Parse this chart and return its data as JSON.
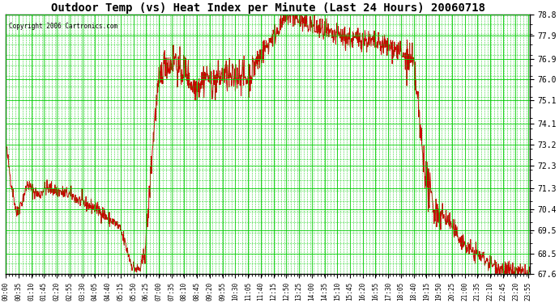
{
  "title": "Outdoor Temp (vs) Heat Index per Minute (Last 24 Hours) 20060718",
  "copyright": "Copyright 2006 Cartronics.com",
  "background_color": "#ffffff",
  "plot_bg_color": "#ffffff",
  "line_color": "#cc0000",
  "grid_color": "#00cc00",
  "yticks": [
    67.6,
    68.5,
    69.5,
    70.4,
    71.3,
    72.3,
    73.2,
    74.1,
    75.1,
    76.0,
    76.9,
    77.9,
    78.8
  ],
  "ylim": [
    67.6,
    78.8
  ],
  "xtick_labels": [
    "00:00",
    "00:35",
    "01:10",
    "01:45",
    "02:20",
    "02:55",
    "03:30",
    "04:05",
    "04:40",
    "05:15",
    "05:50",
    "06:25",
    "07:00",
    "07:35",
    "08:10",
    "08:45",
    "09:20",
    "09:55",
    "10:30",
    "11:05",
    "11:40",
    "12:15",
    "12:50",
    "13:25",
    "14:00",
    "14:35",
    "15:10",
    "15:45",
    "16:20",
    "16:55",
    "17:30",
    "18:05",
    "18:40",
    "19:15",
    "19:50",
    "20:25",
    "21:00",
    "21:35",
    "22:10",
    "22:45",
    "23:20",
    "23:55"
  ],
  "xtick_minutes": [
    0,
    35,
    70,
    105,
    140,
    175,
    210,
    245,
    280,
    315,
    350,
    385,
    420,
    455,
    490,
    525,
    560,
    595,
    630,
    665,
    700,
    735,
    770,
    805,
    840,
    875,
    910,
    945,
    980,
    1015,
    1050,
    1085,
    1120,
    1155,
    1190,
    1225,
    1260,
    1295,
    1330,
    1365,
    1400,
    1435
  ],
  "temp_keypoints": [
    [
      0,
      73.2
    ],
    [
      15,
      71.5
    ],
    [
      30,
      70.2
    ],
    [
      45,
      70.8
    ],
    [
      60,
      71.5
    ],
    [
      75,
      71.2
    ],
    [
      90,
      71.0
    ],
    [
      105,
      71.3
    ],
    [
      120,
      71.3
    ],
    [
      140,
      71.2
    ],
    [
      160,
      71.1
    ],
    [
      180,
      71.0
    ],
    [
      200,
      70.8
    ],
    [
      220,
      70.6
    ],
    [
      240,
      70.5
    ],
    [
      260,
      70.3
    ],
    [
      270,
      70.2
    ],
    [
      280,
      70.0
    ],
    [
      300,
      69.8
    ],
    [
      315,
      69.5
    ],
    [
      330,
      68.8
    ],
    [
      345,
      68.0
    ],
    [
      360,
      67.8
    ],
    [
      370,
      67.85
    ],
    [
      380,
      68.5
    ],
    [
      390,
      70.0
    ],
    [
      400,
      72.5
    ],
    [
      410,
      74.5
    ],
    [
      420,
      75.8
    ],
    [
      430,
      76.5
    ],
    [
      440,
      76.8
    ],
    [
      450,
      76.6
    ],
    [
      460,
      76.8
    ],
    [
      465,
      77.0
    ],
    [
      470,
      76.5
    ],
    [
      480,
      76.3
    ],
    [
      490,
      76.5
    ],
    [
      500,
      76.2
    ],
    [
      510,
      75.8
    ],
    [
      520,
      75.7
    ],
    [
      530,
      75.8
    ],
    [
      540,
      76.0
    ],
    [
      550,
      76.2
    ],
    [
      560,
      76.0
    ],
    [
      570,
      75.8
    ],
    [
      580,
      76.0
    ],
    [
      590,
      76.1
    ],
    [
      600,
      76.2
    ],
    [
      610,
      76.1
    ],
    [
      620,
      76.0
    ],
    [
      630,
      76.1
    ],
    [
      640,
      76.3
    ],
    [
      650,
      76.2
    ],
    [
      660,
      76.0
    ],
    [
      670,
      76.2
    ],
    [
      680,
      76.5
    ],
    [
      690,
      76.8
    ],
    [
      700,
      77.0
    ],
    [
      710,
      77.3
    ],
    [
      720,
      77.5
    ],
    [
      730,
      77.8
    ],
    [
      740,
      78.0
    ],
    [
      750,
      78.3
    ],
    [
      760,
      78.5
    ],
    [
      770,
      78.7
    ],
    [
      780,
      78.8
    ],
    [
      790,
      78.7
    ],
    [
      800,
      78.6
    ],
    [
      810,
      78.5
    ],
    [
      820,
      78.4
    ],
    [
      830,
      78.4
    ],
    [
      840,
      78.3
    ],
    [
      850,
      78.2
    ],
    [
      860,
      78.2
    ],
    [
      870,
      78.1
    ],
    [
      880,
      78.0
    ],
    [
      890,
      77.9
    ],
    [
      900,
      77.8
    ],
    [
      910,
      77.9
    ],
    [
      920,
      77.9
    ],
    [
      930,
      77.8
    ],
    [
      940,
      77.8
    ],
    [
      950,
      77.7
    ],
    [
      960,
      77.7
    ],
    [
      970,
      77.8
    ],
    [
      980,
      77.8
    ],
    [
      990,
      77.7
    ],
    [
      1000,
      77.6
    ],
    [
      1010,
      77.6
    ],
    [
      1020,
      77.5
    ],
    [
      1030,
      77.5
    ],
    [
      1040,
      77.5
    ],
    [
      1050,
      77.4
    ],
    [
      1060,
      77.4
    ],
    [
      1070,
      77.3
    ],
    [
      1080,
      77.2
    ],
    [
      1090,
      77.0
    ],
    [
      1100,
      76.9
    ],
    [
      1110,
      76.8
    ],
    [
      1120,
      76.5
    ],
    [
      1125,
      76.0
    ],
    [
      1130,
      75.2
    ],
    [
      1135,
      74.3
    ],
    [
      1140,
      73.5
    ],
    [
      1145,
      72.8
    ],
    [
      1150,
      72.3
    ],
    [
      1155,
      71.7
    ],
    [
      1160,
      71.3
    ],
    [
      1165,
      71.0
    ],
    [
      1170,
      70.8
    ],
    [
      1175,
      70.5
    ],
    [
      1180,
      70.3
    ],
    [
      1190,
      70.2
    ],
    [
      1200,
      70.1
    ],
    [
      1210,
      70.0
    ],
    [
      1220,
      69.8
    ],
    [
      1230,
      69.5
    ],
    [
      1240,
      69.3
    ],
    [
      1250,
      69.1
    ],
    [
      1260,
      68.9
    ],
    [
      1270,
      68.7
    ],
    [
      1280,
      68.6
    ],
    [
      1290,
      68.5
    ],
    [
      1300,
      68.4
    ],
    [
      1310,
      68.3
    ],
    [
      1320,
      68.2
    ],
    [
      1330,
      68.1
    ],
    [
      1340,
      68.0
    ],
    [
      1350,
      67.9
    ],
    [
      1360,
      67.85
    ],
    [
      1370,
      67.8
    ],
    [
      1380,
      67.75
    ],
    [
      1390,
      67.7
    ],
    [
      1400,
      67.65
    ],
    [
      1410,
      67.63
    ],
    [
      1420,
      67.62
    ],
    [
      1430,
      67.61
    ],
    [
      1439,
      67.6
    ]
  ]
}
